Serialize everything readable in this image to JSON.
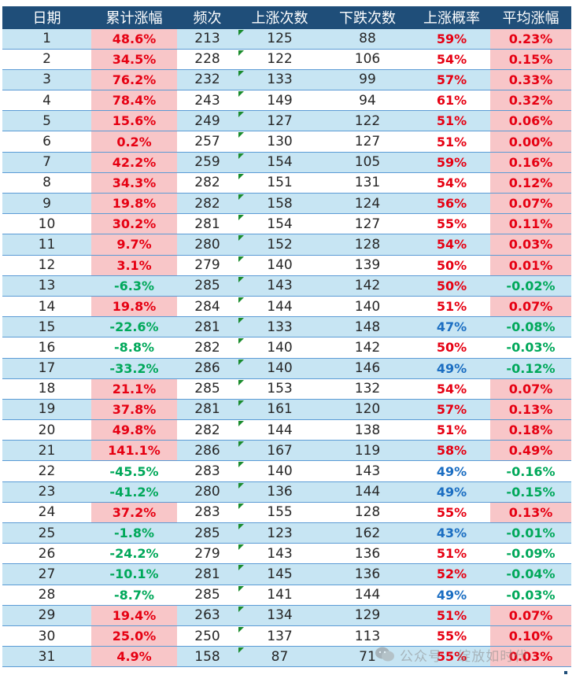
{
  "table": {
    "headers": [
      "日期",
      "累计涨幅",
      "频次",
      "上涨次数",
      "下跌次数",
      "上涨概率",
      "平均涨幅"
    ],
    "rows": [
      {
        "day": "1",
        "cum": "48.6%",
        "freq": "213",
        "up": "125",
        "down": "88",
        "prob": "59%",
        "avg": "0.23%"
      },
      {
        "day": "2",
        "cum": "34.5%",
        "freq": "228",
        "up": "122",
        "down": "106",
        "prob": "54%",
        "avg": "0.15%"
      },
      {
        "day": "3",
        "cum": "76.2%",
        "freq": "232",
        "up": "133",
        "down": "99",
        "prob": "57%",
        "avg": "0.33%"
      },
      {
        "day": "4",
        "cum": "78.4%",
        "freq": "243",
        "up": "149",
        "down": "94",
        "prob": "61%",
        "avg": "0.32%"
      },
      {
        "day": "5",
        "cum": "15.6%",
        "freq": "249",
        "up": "127",
        "down": "122",
        "prob": "51%",
        "avg": "0.06%"
      },
      {
        "day": "6",
        "cum": "0.2%",
        "freq": "257",
        "up": "130",
        "down": "127",
        "prob": "51%",
        "avg": "0.00%"
      },
      {
        "day": "7",
        "cum": "42.2%",
        "freq": "259",
        "up": "154",
        "down": "105",
        "prob": "59%",
        "avg": "0.16%"
      },
      {
        "day": "8",
        "cum": "34.3%",
        "freq": "282",
        "up": "151",
        "down": "131",
        "prob": "54%",
        "avg": "0.12%"
      },
      {
        "day": "9",
        "cum": "19.8%",
        "freq": "282",
        "up": "158",
        "down": "124",
        "prob": "56%",
        "avg": "0.07%"
      },
      {
        "day": "10",
        "cum": "30.2%",
        "freq": "281",
        "up": "154",
        "down": "127",
        "prob": "55%",
        "avg": "0.11%"
      },
      {
        "day": "11",
        "cum": "9.7%",
        "freq": "280",
        "up": "152",
        "down": "128",
        "prob": "54%",
        "avg": "0.03%"
      },
      {
        "day": "12",
        "cum": "3.1%",
        "freq": "279",
        "up": "140",
        "down": "139",
        "prob": "50%",
        "avg": "0.01%"
      },
      {
        "day": "13",
        "cum": "-6.3%",
        "freq": "285",
        "up": "143",
        "down": "142",
        "prob": "50%",
        "avg": "-0.02%"
      },
      {
        "day": "14",
        "cum": "19.8%",
        "freq": "284",
        "up": "144",
        "down": "140",
        "prob": "51%",
        "avg": "0.07%"
      },
      {
        "day": "15",
        "cum": "-22.6%",
        "freq": "281",
        "up": "133",
        "down": "148",
        "prob": "47%",
        "avg": "-0.08%"
      },
      {
        "day": "16",
        "cum": "-8.8%",
        "freq": "282",
        "up": "140",
        "down": "142",
        "prob": "50%",
        "avg": "-0.03%"
      },
      {
        "day": "17",
        "cum": "-33.2%",
        "freq": "286",
        "up": "140",
        "down": "146",
        "prob": "49%",
        "avg": "-0.12%"
      },
      {
        "day": "18",
        "cum": "21.1%",
        "freq": "285",
        "up": "153",
        "down": "132",
        "prob": "54%",
        "avg": "0.07%"
      },
      {
        "day": "19",
        "cum": "37.8%",
        "freq": "281",
        "up": "161",
        "down": "120",
        "prob": "57%",
        "avg": "0.13%"
      },
      {
        "day": "20",
        "cum": "49.8%",
        "freq": "282",
        "up": "144",
        "down": "138",
        "prob": "51%",
        "avg": "0.18%"
      },
      {
        "day": "21",
        "cum": "141.1%",
        "freq": "286",
        "up": "167",
        "down": "119",
        "prob": "58%",
        "avg": "0.49%"
      },
      {
        "day": "22",
        "cum": "-45.5%",
        "freq": "283",
        "up": "140",
        "down": "143",
        "prob": "49%",
        "avg": "-0.16%"
      },
      {
        "day": "23",
        "cum": "-41.2%",
        "freq": "280",
        "up": "136",
        "down": "144",
        "prob": "49%",
        "avg": "-0.15%"
      },
      {
        "day": "24",
        "cum": "37.2%",
        "freq": "283",
        "up": "155",
        "down": "128",
        "prob": "55%",
        "avg": "0.13%"
      },
      {
        "day": "25",
        "cum": "-1.8%",
        "freq": "285",
        "up": "123",
        "down": "162",
        "prob": "43%",
        "avg": "-0.01%"
      },
      {
        "day": "26",
        "cum": "-24.2%",
        "freq": "279",
        "up": "143",
        "down": "136",
        "prob": "51%",
        "avg": "-0.09%"
      },
      {
        "day": "27",
        "cum": "-10.1%",
        "freq": "281",
        "up": "145",
        "down": "136",
        "prob": "52%",
        "avg": "-0.04%"
      },
      {
        "day": "28",
        "cum": "-8.7%",
        "freq": "285",
        "up": "141",
        "down": "144",
        "prob": "49%",
        "avg": "-0.03%"
      },
      {
        "day": "29",
        "cum": "19.4%",
        "freq": "263",
        "up": "134",
        "down": "129",
        "prob": "51%",
        "avg": "0.07%"
      },
      {
        "day": "30",
        "cum": "25.0%",
        "freq": "250",
        "up": "137",
        "down": "113",
        "prob": "55%",
        "avg": "0.10%"
      },
      {
        "day": "31",
        "cum": "4.9%",
        "freq": "158",
        "up": "87",
        "down": "71",
        "prob": "55%",
        "avg": "0.03%"
      }
    ]
  },
  "watermark": {
    "icon": "wechat-icon",
    "text": "公众号 · 绽放如时代"
  },
  "colors": {
    "header_bg": "#1f4e79",
    "band_bg": "#c7e5f3",
    "highlight_bg": "#f8c6c8",
    "positive": "#e60012",
    "negative": "#00a85a",
    "low_probability": "#1b6ec2"
  }
}
